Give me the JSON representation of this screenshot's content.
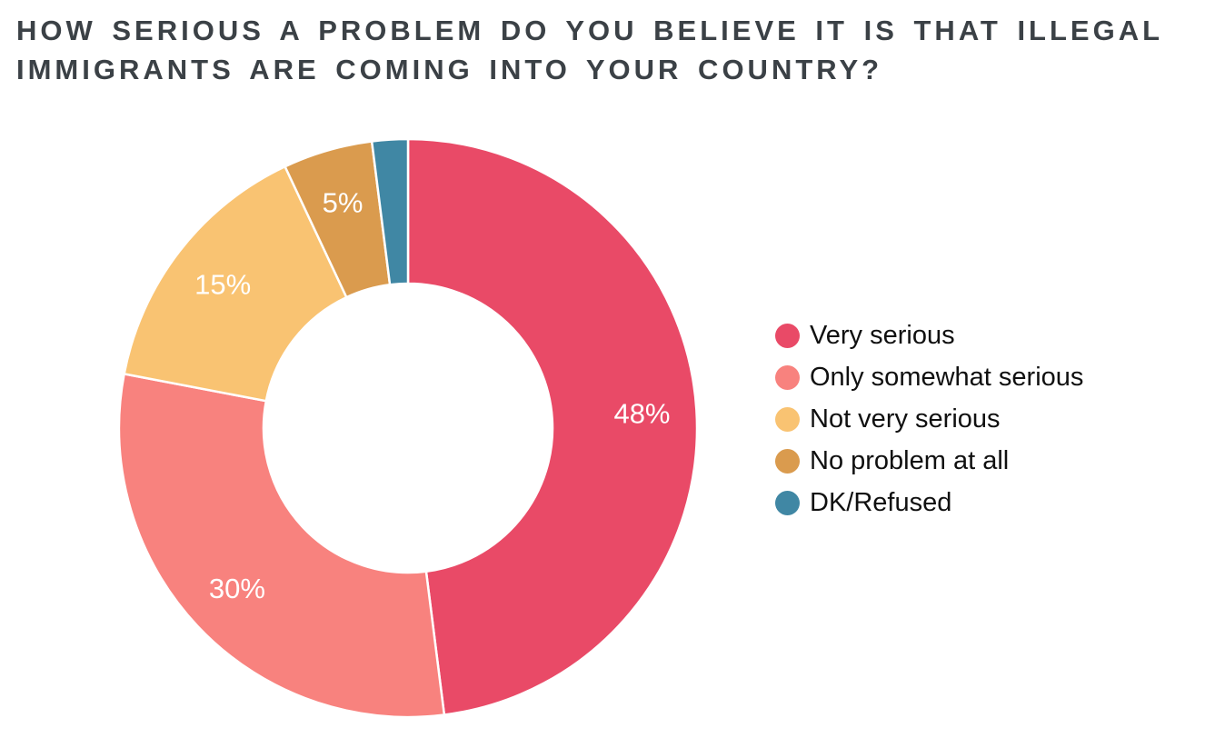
{
  "page": {
    "background_color": "#ffffff"
  },
  "title": {
    "full_text": "HOW SERIOUS A PROBLEM DO YOU BELIEVE IT IS THAT ILLEGAL IMMIGRANTS ARE COMING INTO YOUR COUNTRY?",
    "lines": [
      "HOW SERIOUS A PROBLEM DO YOU BELIEVE IT IS THAT ILLEGAL",
      "IMMIGRANTS ARE COMING INTO YOUR COUNTRY?"
    ],
    "color": "#3B4146"
  },
  "chart_data": {
    "type": "pie",
    "subtype": "donut",
    "title": "HOW SERIOUS A PROBLEM DO YOU BELIEVE IT IS THAT ILLEGAL IMMIGRANTS ARE COMING INTO YOUR COUNTRY?",
    "categories": [
      "Very serious",
      "Only somewhat serious",
      "Not very serious",
      "No problem at all",
      "DK/Refused"
    ],
    "values": [
      48,
      30,
      15,
      5,
      2
    ],
    "labels_shown": [
      "48%",
      "30%",
      "15%",
      "5%",
      ""
    ],
    "colors": [
      "#E94A67",
      "#F8827E",
      "#F9C372",
      "#DA9B4E",
      "#4087A4"
    ],
    "slice_label_color": "#FFFFFF",
    "start_angle": "12 o'clock",
    "direction": "clockwise",
    "donut_hole_ratio": 0.5,
    "slice_separator_color": "#FFFFFF",
    "legend_position": "right",
    "legend_marker": "circle"
  }
}
